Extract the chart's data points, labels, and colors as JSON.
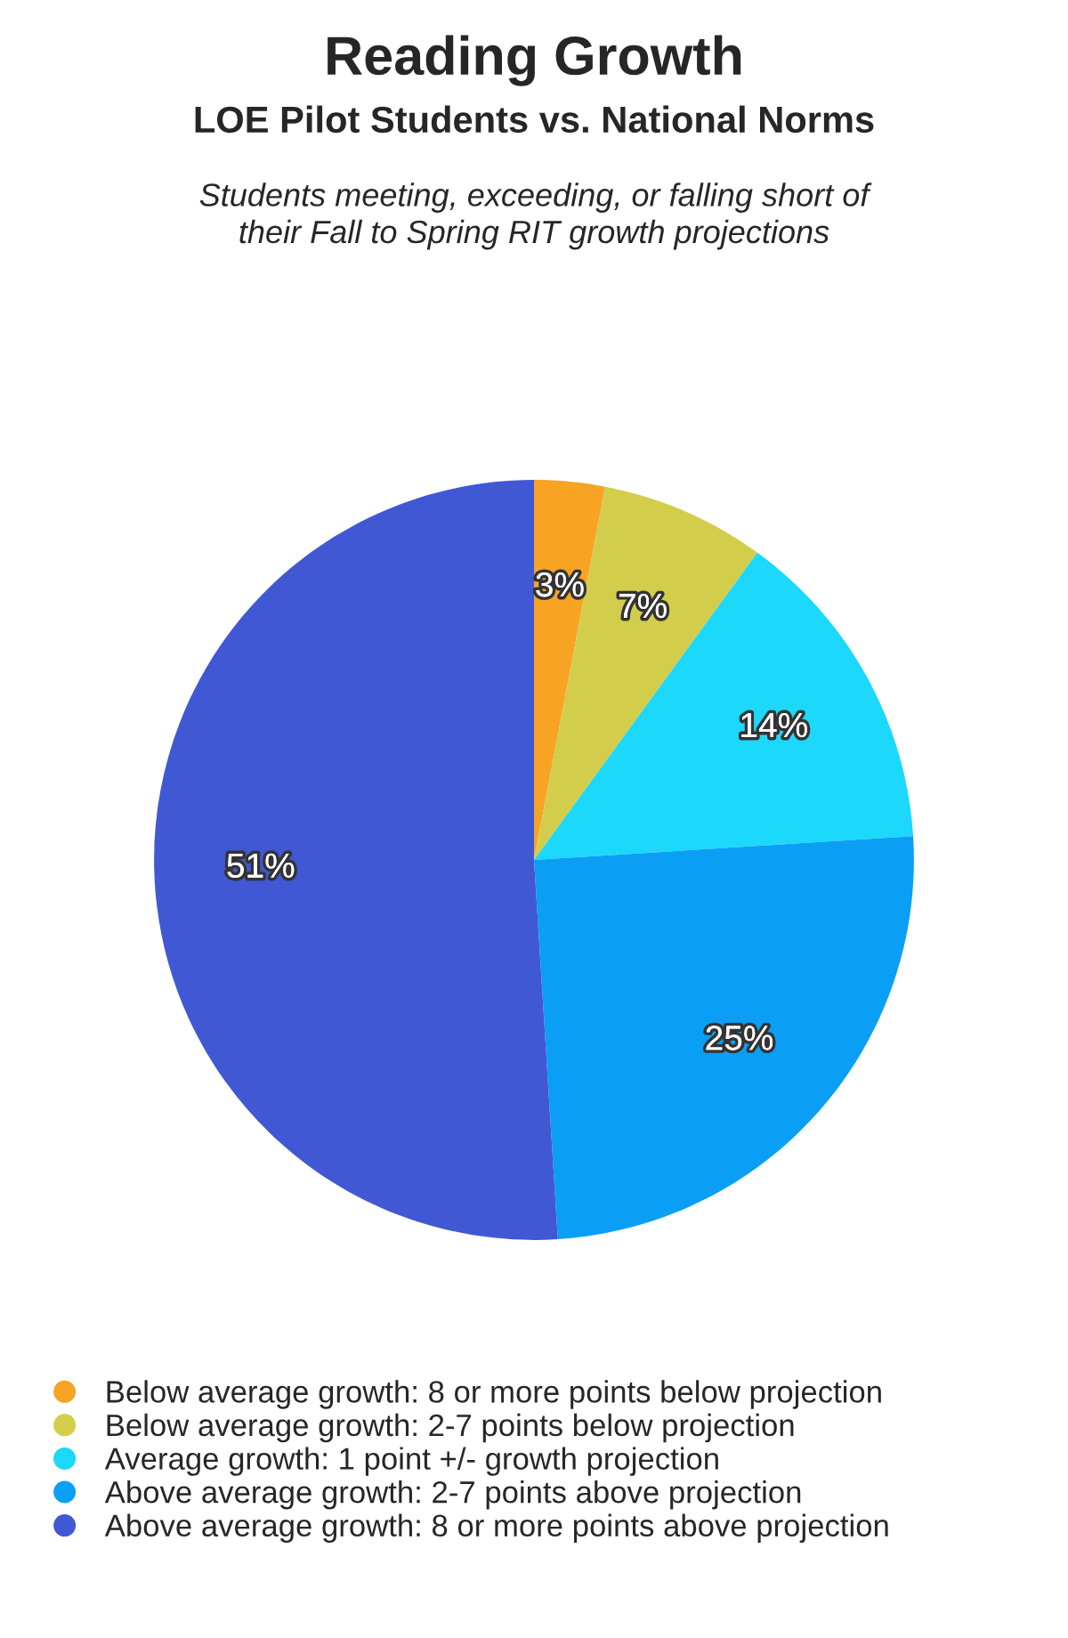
{
  "chart_data": {
    "type": "pie",
    "title": "Reading Growth",
    "subtitle": "LOE Pilot Students vs. National Norms",
    "annotations": [
      "Students meeting, exceeding, or falling short of\ntheir Fall to Spring RIT growth projections"
    ],
    "categories": [
      "Below average growth: 8 or more points below projection",
      "Below average growth: 2-7 points below projection",
      "Average growth: 1 point +/- growth projection",
      "Above average growth: 2-7 points above projection",
      "Above average growth: 8 or more points above projection"
    ],
    "values": [
      3,
      7,
      14,
      25,
      51
    ],
    "value_labels": [
      "3%",
      "7%",
      "14%",
      "25%",
      "51%"
    ],
    "colors": [
      "#f7a324",
      "#d3cd4c",
      "#1cd8fb",
      "#0a9ff5",
      "#4058d4"
    ],
    "legend": "bottom"
  }
}
